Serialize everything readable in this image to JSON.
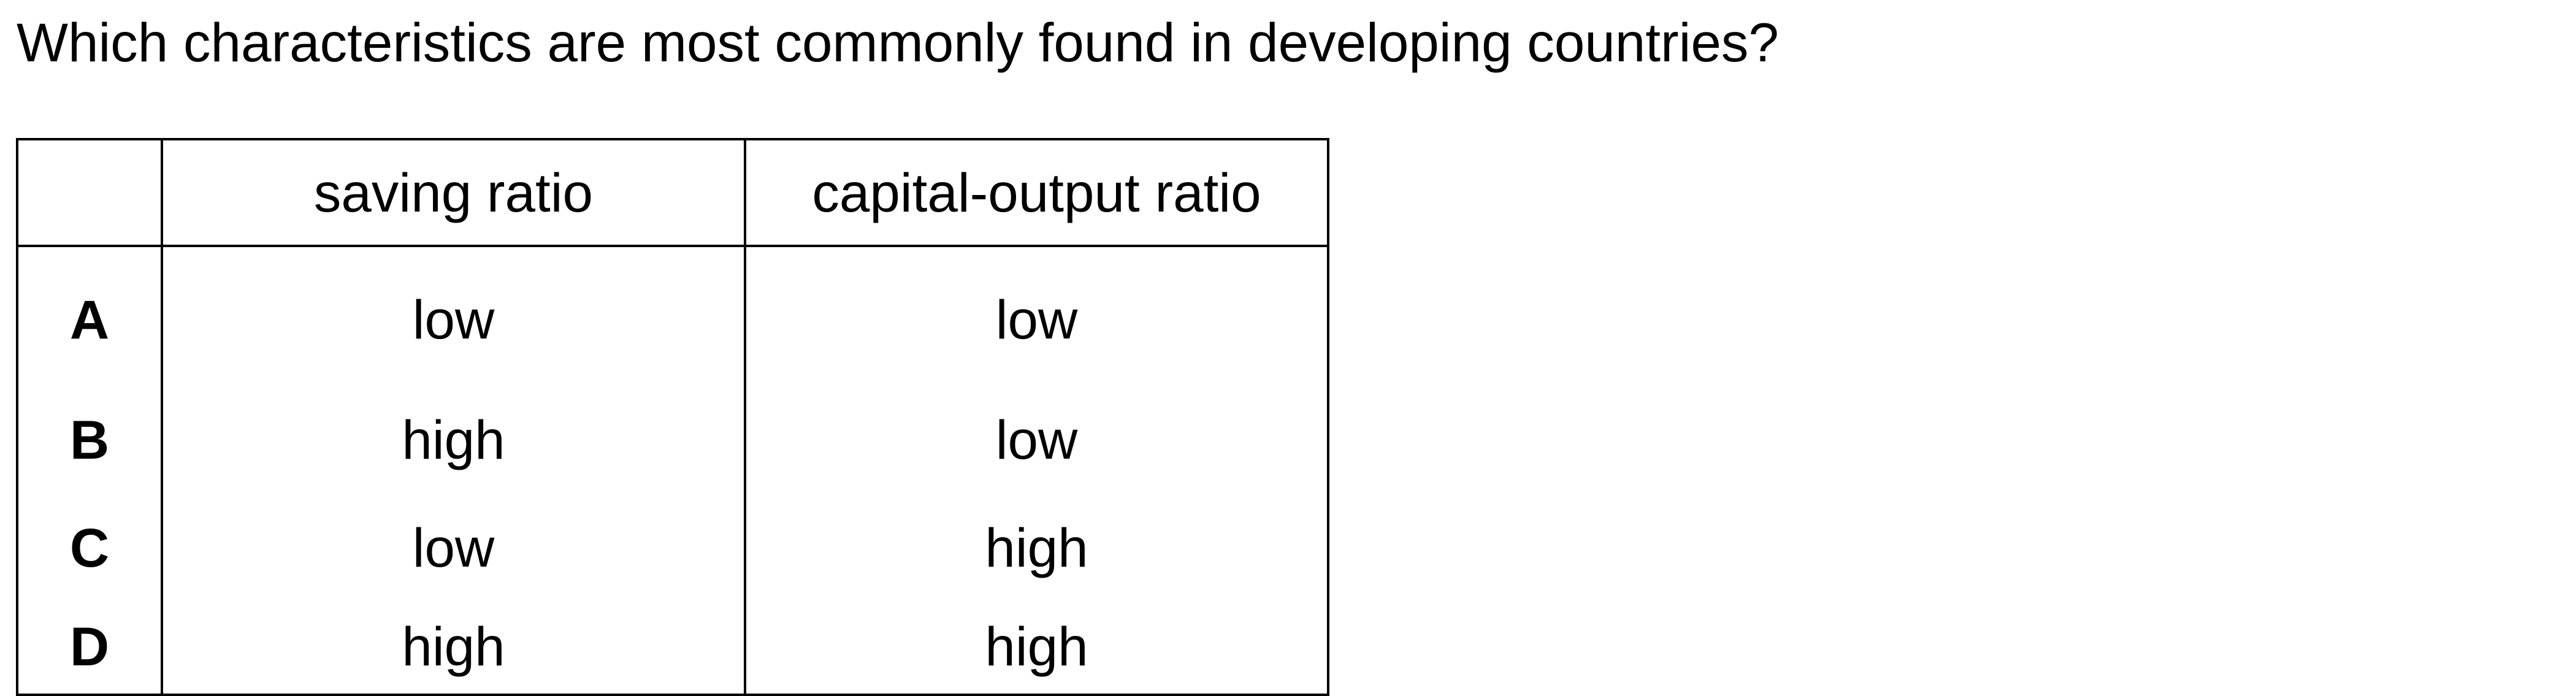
{
  "question": "Which characteristics are most commonly found in developing countries?",
  "table": {
    "headers": [
      "",
      "saving ratio",
      "capital-output ratio"
    ],
    "rows": [
      {
        "letter": "A",
        "saving_ratio": "low",
        "capital_output_ratio": "low"
      },
      {
        "letter": "B",
        "saving_ratio": "high",
        "capital_output_ratio": "low"
      },
      {
        "letter": "C",
        "saving_ratio": "low",
        "capital_output_ratio": "high"
      },
      {
        "letter": "D",
        "saving_ratio": "high",
        "capital_output_ratio": "high"
      }
    ]
  }
}
